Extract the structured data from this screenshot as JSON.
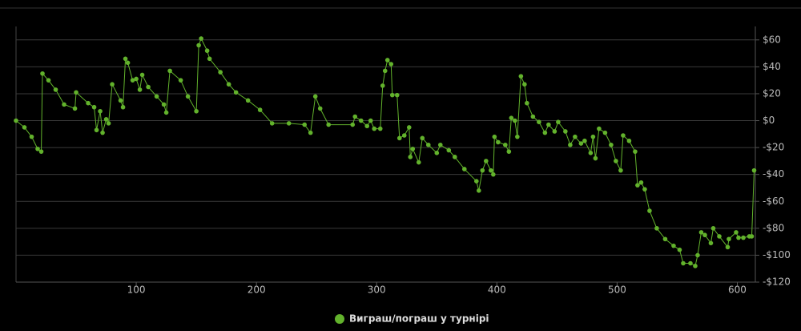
{
  "chart_data": {
    "type": "line",
    "x": [
      0,
      7,
      13,
      18,
      21,
      22,
      27,
      33,
      40,
      49,
      50,
      60,
      65,
      67,
      70,
      72,
      75,
      77,
      80,
      87,
      89,
      91,
      93,
      97,
      100,
      103,
      105,
      110,
      117,
      123,
      125,
      128,
      137,
      143,
      150,
      152,
      154,
      159,
      161,
      170,
      177,
      183,
      193,
      203,
      213,
      227,
      240,
      245,
      249,
      253,
      260,
      280,
      282,
      287,
      292,
      295,
      298,
      303,
      305,
      307,
      309,
      312,
      313,
      317,
      319,
      323,
      327,
      328,
      330,
      335,
      338,
      343,
      350,
      353,
      360,
      365,
      373,
      383,
      385,
      388,
      391,
      395,
      397,
      398,
      401,
      407,
      410,
      412,
      415,
      417,
      420,
      423,
      425,
      430,
      435,
      440,
      443,
      448,
      451,
      457,
      461,
      465,
      470,
      473,
      478,
      480,
      482,
      485,
      490,
      495,
      499,
      503,
      505,
      510,
      515,
      517,
      520,
      523,
      527,
      533,
      540,
      547,
      552,
      555,
      561,
      565,
      567,
      570,
      573,
      578,
      580,
      585,
      592,
      593,
      599,
      601,
      605,
      610,
      612,
      614
    ],
    "series": [
      {
        "name": "Виграш/пограш у турнірі",
        "color": "#62b22c",
        "values": [
          0,
          -5,
          -12,
          -21,
          -23,
          35,
          30,
          23,
          12,
          9,
          21,
          13,
          10,
          -7,
          7,
          -9,
          1,
          -2,
          27,
          15,
          10,
          46,
          43,
          30,
          31,
          23,
          34,
          25,
          18,
          12,
          6,
          37,
          30,
          18,
          7,
          56,
          61,
          52,
          46,
          36,
          27,
          21,
          15,
          8,
          -2,
          -2,
          -3,
          -9,
          18,
          9,
          -3,
          -3,
          3,
          0,
          -4,
          0,
          -6,
          -6,
          26,
          37,
          45,
          42,
          19,
          19,
          -13,
          -11,
          -5,
          -27,
          -21,
          -31,
          -13,
          -18,
          -24,
          -18,
          -22,
          -27,
          -36,
          -45,
          -52,
          -37,
          -30,
          -37,
          -40,
          -12,
          -16,
          -18,
          -23,
          2,
          0,
          -12,
          33,
          27,
          13,
          3,
          -1,
          -9,
          -3,
          -8,
          -1,
          -8,
          -18,
          -12,
          -17,
          -15,
          -24,
          -12,
          -28,
          -6,
          -9,
          -18,
          -30,
          -37,
          -11,
          -15,
          -23,
          -48,
          -46,
          -51,
          -67,
          -80,
          -88,
          -93,
          -96,
          -106,
          -106,
          -108,
          -100,
          -83,
          -85,
          -91,
          -80,
          -86,
          -94,
          -88,
          -83,
          -87,
          -87,
          -86,
          -86,
          -37
        ]
      }
    ],
    "xlim": [
      0,
      615
    ],
    "ylim": [
      -120,
      70
    ],
    "xticks": [
      100,
      200,
      300,
      400,
      500,
      600
    ],
    "yticks": [
      {
        "value": 60,
        "label": "$60"
      },
      {
        "value": 40,
        "label": "$40"
      },
      {
        "value": 20,
        "label": "$20"
      },
      {
        "value": 0,
        "label": "$0"
      },
      {
        "value": -20,
        "label": "-$20"
      },
      {
        "value": -40,
        "label": "-$40"
      },
      {
        "value": -60,
        "label": "-$60"
      },
      {
        "value": -80,
        "label": "-$80"
      },
      {
        "value": -100,
        "label": "-$100"
      },
      {
        "value": -120,
        "label": "-$120"
      }
    ],
    "grid": true,
    "legend": "bottom"
  }
}
